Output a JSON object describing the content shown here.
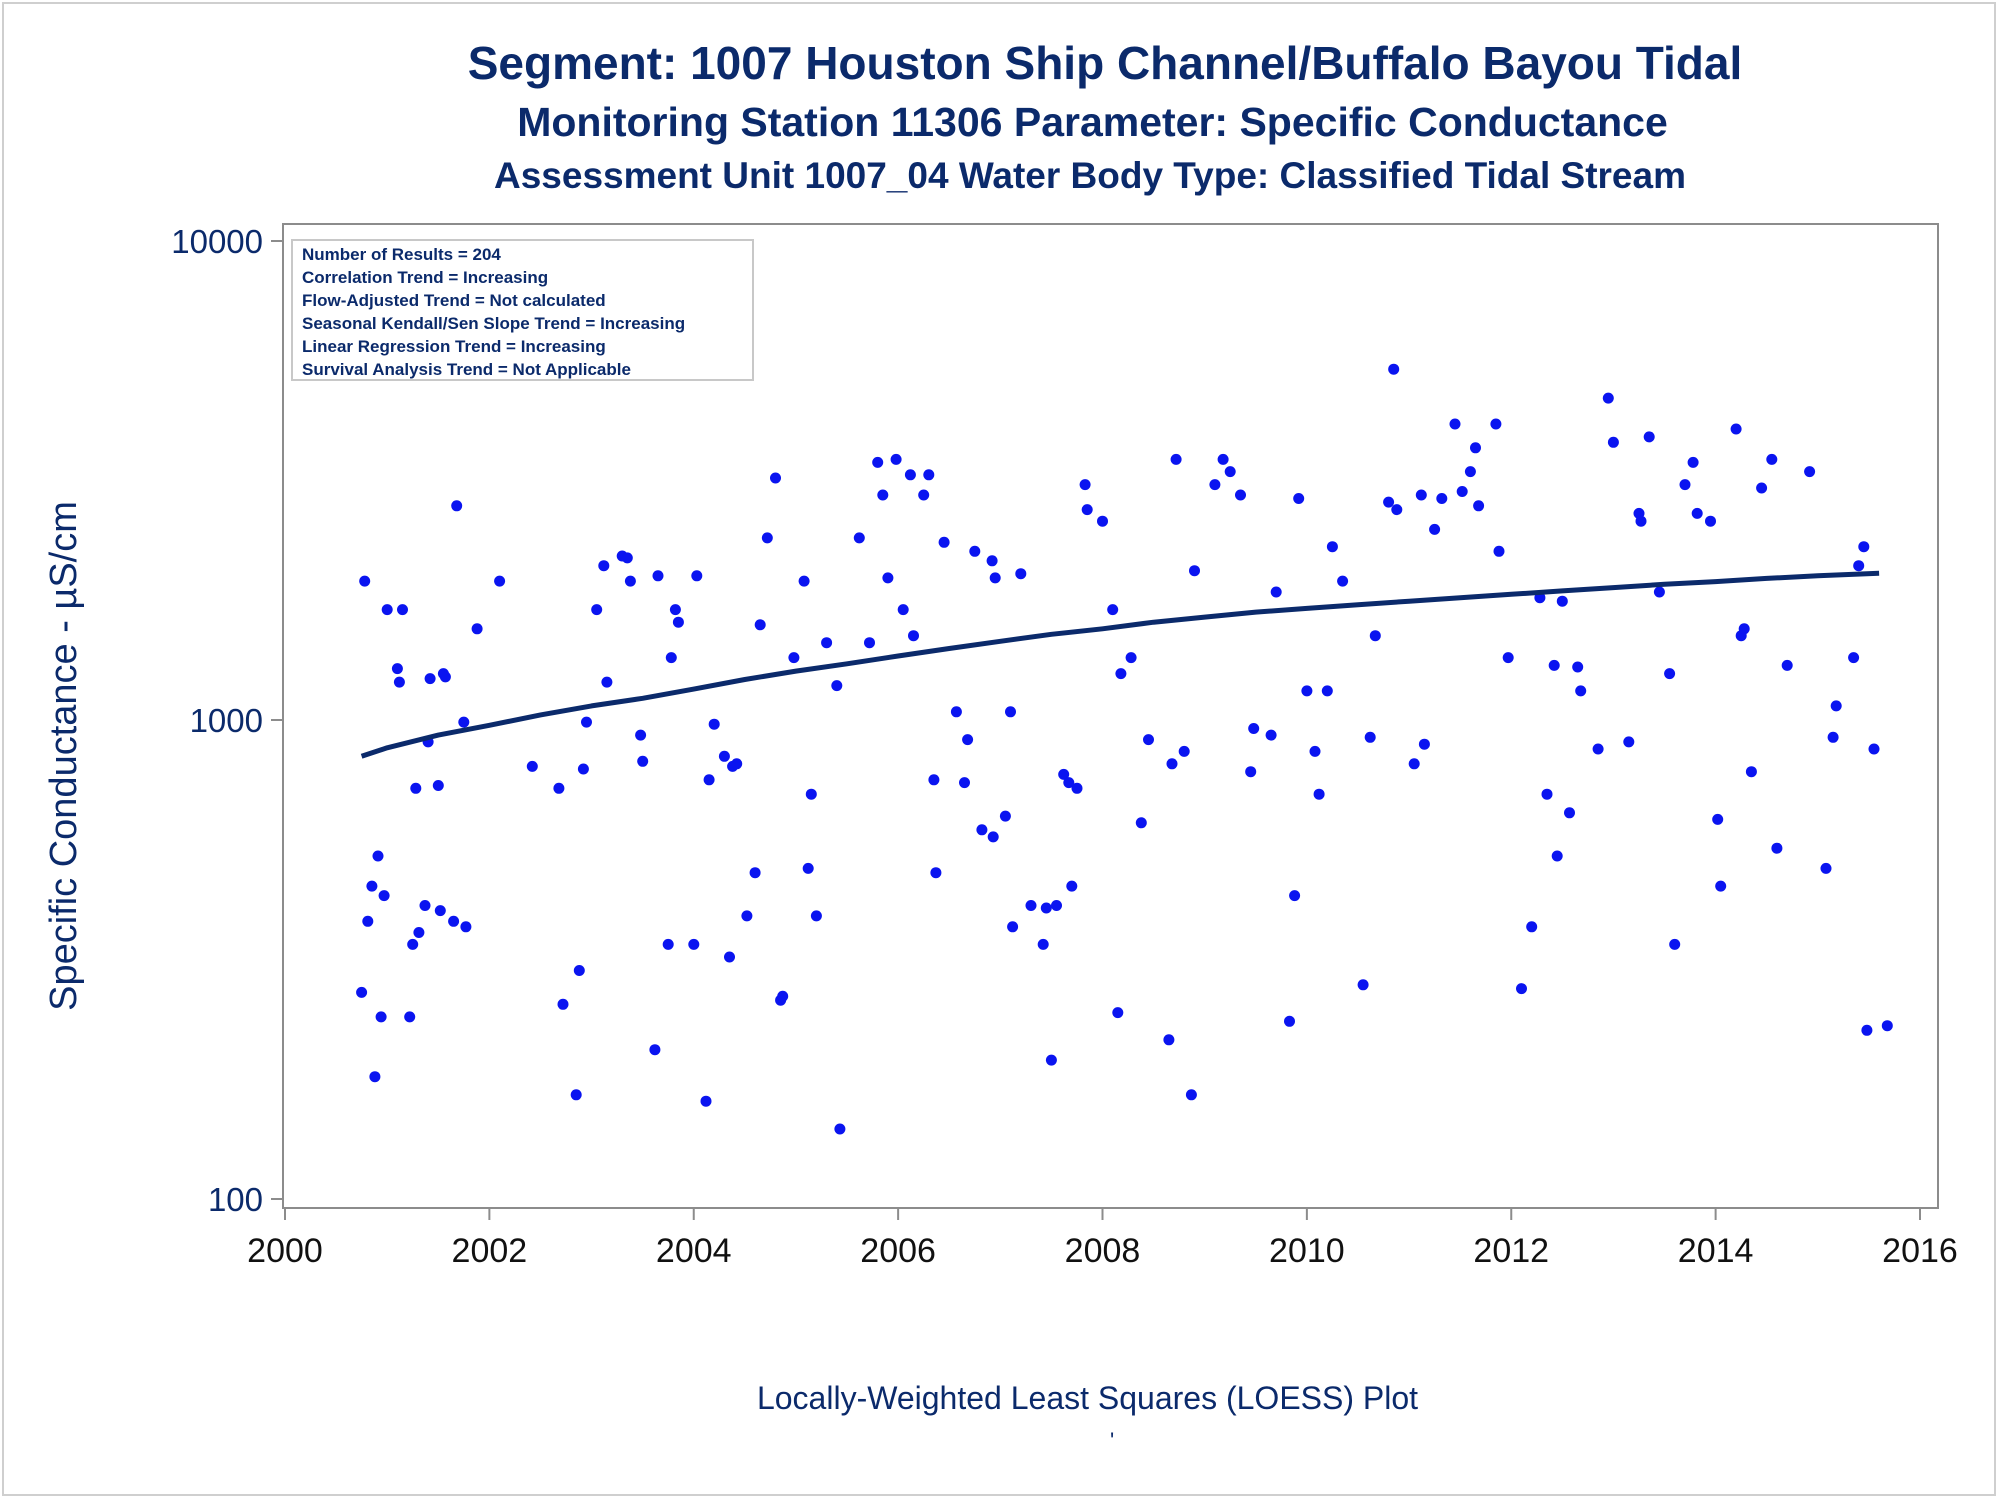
{
  "titles": {
    "line1": "Segment: 1007  Houston Ship Channel/Buffalo Bayou Tidal",
    "line2": "Monitoring Station 11306 Parameter: Specific Conductance",
    "line3": "Assessment Unit 1007_04   Water Body Type: Classified Tidal Stream"
  },
  "footnote": "Locally-Weighted Least Squares (LOESS) Plot",
  "footnote_mark": "'",
  "stats_box": [
    "Number of Results = 204",
    "Correlation Trend = Increasing",
    "Flow-Adjusted Trend = Not calculated",
    "Seasonal Kendall/Sen Slope Trend = Increasing",
    "Linear Regression Trend = Increasing",
    "Survival Analysis Trend = Not Applicable"
  ],
  "colors": {
    "text": "#0b2a6b",
    "points": "#0a14f0",
    "trend_line": "#0b2a6b",
    "axis": "#8c8c8c"
  },
  "chart_data": {
    "type": "scatter",
    "ylabel": "Specific Conductance -  µS/cm",
    "xlabel": "",
    "y_scale": "log",
    "xlim": [
      2000,
      2016
    ],
    "ylim": [
      100,
      10000
    ],
    "x_ticks": [
      "2000",
      "2002",
      "2004",
      "2006",
      "2008",
      "2010",
      "2012",
      "2014",
      "2016"
    ],
    "y_ticks": [
      "100",
      "1000",
      "10000"
    ],
    "legend": "none",
    "grid": false,
    "series": [
      {
        "points": [
          [
            2000.75,
            270
          ],
          [
            2000.78,
            1950
          ],
          [
            2000.81,
            380
          ],
          [
            2000.85,
            450
          ],
          [
            2000.88,
            180
          ],
          [
            2000.91,
            520
          ],
          [
            2000.94,
            240
          ],
          [
            2000.97,
            430
          ],
          [
            2001.0,
            1700
          ],
          [
            2001.1,
            1280
          ],
          [
            2001.12,
            1200
          ],
          [
            2001.15,
            1700
          ],
          [
            2001.22,
            240
          ],
          [
            2001.25,
            340
          ],
          [
            2001.28,
            720
          ],
          [
            2001.31,
            360
          ],
          [
            2001.37,
            410
          ],
          [
            2001.4,
            900
          ],
          [
            2001.42,
            1220
          ],
          [
            2001.5,
            730
          ],
          [
            2001.52,
            400
          ],
          [
            2001.55,
            1250
          ],
          [
            2001.57,
            1230
          ],
          [
            2001.65,
            380
          ],
          [
            2001.68,
            2800
          ],
          [
            2001.75,
            990
          ],
          [
            2001.77,
            370
          ],
          [
            2001.88,
            1550
          ],
          [
            2002.1,
            1950
          ],
          [
            2002.42,
            800
          ],
          [
            2002.68,
            720
          ],
          [
            2002.72,
            255
          ],
          [
            2002.85,
            165
          ],
          [
            2002.88,
            300
          ],
          [
            2002.92,
            790
          ],
          [
            2002.95,
            990
          ],
          [
            2003.05,
            1700
          ],
          [
            2003.12,
            2100
          ],
          [
            2003.15,
            1200
          ],
          [
            2003.3,
            2200
          ],
          [
            2003.35,
            2180
          ],
          [
            2003.38,
            1950
          ],
          [
            2003.48,
            930
          ],
          [
            2003.5,
            820
          ],
          [
            2003.62,
            205
          ],
          [
            2003.65,
            2000
          ],
          [
            2003.75,
            340
          ],
          [
            2003.78,
            1350
          ],
          [
            2003.82,
            1700
          ],
          [
            2003.85,
            1600
          ],
          [
            2004.0,
            340
          ],
          [
            2004.03,
            2000
          ],
          [
            2004.12,
            160
          ],
          [
            2004.15,
            750
          ],
          [
            2004.2,
            980
          ],
          [
            2004.3,
            840
          ],
          [
            2004.35,
            320
          ],
          [
            2004.38,
            800
          ],
          [
            2004.42,
            810
          ],
          [
            2004.52,
            390
          ],
          [
            2004.6,
            480
          ],
          [
            2004.65,
            1580
          ],
          [
            2004.72,
            2400
          ],
          [
            2004.8,
            3200
          ],
          [
            2004.85,
            260
          ],
          [
            2004.87,
            265
          ],
          [
            2004.98,
            1350
          ],
          [
            2005.08,
            1950
          ],
          [
            2005.12,
            490
          ],
          [
            2005.15,
            700
          ],
          [
            2005.2,
            390
          ],
          [
            2005.3,
            1450
          ],
          [
            2005.4,
            1180
          ],
          [
            2005.43,
            140
          ],
          [
            2005.62,
            2400
          ],
          [
            2005.72,
            1450
          ],
          [
            2005.8,
            3450
          ],
          [
            2005.85,
            2950
          ],
          [
            2005.9,
            1980
          ],
          [
            2005.98,
            3500
          ],
          [
            2006.05,
            1700
          ],
          [
            2006.12,
            3250
          ],
          [
            2006.15,
            1500
          ],
          [
            2006.25,
            2950
          ],
          [
            2006.3,
            3250
          ],
          [
            2006.35,
            750
          ],
          [
            2006.37,
            480
          ],
          [
            2006.45,
            2350
          ],
          [
            2006.57,
            1040
          ],
          [
            2006.65,
            740
          ],
          [
            2006.68,
            910
          ],
          [
            2006.75,
            2250
          ],
          [
            2006.82,
            590
          ],
          [
            2006.92,
            2150
          ],
          [
            2006.93,
            570
          ],
          [
            2006.95,
            1980
          ],
          [
            2007.05,
            630
          ],
          [
            2007.1,
            1040
          ],
          [
            2007.12,
            370
          ],
          [
            2007.2,
            2020
          ],
          [
            2007.3,
            410
          ],
          [
            2007.42,
            340
          ],
          [
            2007.45,
            405
          ],
          [
            2007.5,
            195
          ],
          [
            2007.55,
            410
          ],
          [
            2007.62,
            770
          ],
          [
            2007.67,
            740
          ],
          [
            2007.7,
            450
          ],
          [
            2007.75,
            720
          ],
          [
            2007.83,
            3100
          ],
          [
            2007.85,
            2750
          ],
          [
            2008.0,
            2600
          ],
          [
            2008.1,
            1700
          ],
          [
            2008.15,
            245
          ],
          [
            2008.18,
            1250
          ],
          [
            2008.28,
            1350
          ],
          [
            2008.38,
            610
          ],
          [
            2008.45,
            910
          ],
          [
            2008.65,
            215
          ],
          [
            2008.68,
            810
          ],
          [
            2008.72,
            3500
          ],
          [
            2008.8,
            860
          ],
          [
            2008.87,
            165
          ],
          [
            2008.9,
            2050
          ],
          [
            2009.1,
            3100
          ],
          [
            2009.18,
            3500
          ],
          [
            2009.25,
            3300
          ],
          [
            2009.35,
            2950
          ],
          [
            2009.45,
            780
          ],
          [
            2009.48,
            960
          ],
          [
            2009.65,
            930
          ],
          [
            2009.7,
            1850
          ],
          [
            2009.83,
            235
          ],
          [
            2009.88,
            430
          ],
          [
            2009.92,
            2900
          ],
          [
            2010.0,
            1150
          ],
          [
            2010.08,
            860
          ],
          [
            2010.12,
            700
          ],
          [
            2010.2,
            1150
          ],
          [
            2010.25,
            2300
          ],
          [
            2010.35,
            1950
          ],
          [
            2010.55,
            280
          ],
          [
            2010.62,
            920
          ],
          [
            2010.67,
            1500
          ],
          [
            2010.8,
            2850
          ],
          [
            2010.85,
            5400
          ],
          [
            2010.88,
            2750
          ],
          [
            2011.05,
            810
          ],
          [
            2011.12,
            2950
          ],
          [
            2011.15,
            890
          ],
          [
            2011.25,
            2500
          ],
          [
            2011.32,
            2900
          ],
          [
            2011.45,
            4150
          ],
          [
            2011.52,
            3000
          ],
          [
            2011.6,
            3300
          ],
          [
            2011.65,
            3700
          ],
          [
            2011.68,
            2800
          ],
          [
            2011.85,
            4150
          ],
          [
            2011.88,
            2250
          ],
          [
            2011.97,
            1350
          ],
          [
            2012.1,
            275
          ],
          [
            2012.2,
            370
          ],
          [
            2012.28,
            1800
          ],
          [
            2012.35,
            700
          ],
          [
            2012.42,
            1300
          ],
          [
            2012.45,
            520
          ],
          [
            2012.5,
            1770
          ],
          [
            2012.57,
            640
          ],
          [
            2012.65,
            1290
          ],
          [
            2012.68,
            1150
          ],
          [
            2012.85,
            870
          ],
          [
            2012.95,
            4700
          ],
          [
            2013.0,
            3800
          ],
          [
            2013.15,
            900
          ],
          [
            2013.25,
            2700
          ],
          [
            2013.27,
            2600
          ],
          [
            2013.35,
            3900
          ],
          [
            2013.45,
            1850
          ],
          [
            2013.55,
            1250
          ],
          [
            2013.6,
            340
          ],
          [
            2013.7,
            3100
          ],
          [
            2013.78,
            3450
          ],
          [
            2013.82,
            2700
          ],
          [
            2013.95,
            2600
          ],
          [
            2014.02,
            620
          ],
          [
            2014.05,
            450
          ],
          [
            2014.2,
            4050
          ],
          [
            2014.25,
            1500
          ],
          [
            2014.28,
            1550
          ],
          [
            2014.35,
            780
          ],
          [
            2014.45,
            3050
          ],
          [
            2014.55,
            3500
          ],
          [
            2014.6,
            540
          ],
          [
            2014.7,
            1300
          ],
          [
            2014.92,
            3300
          ],
          [
            2015.08,
            490
          ],
          [
            2015.15,
            920
          ],
          [
            2015.18,
            1070
          ],
          [
            2015.35,
            1350
          ],
          [
            2015.4,
            2100
          ],
          [
            2015.45,
            2300
          ],
          [
            2015.48,
            225
          ],
          [
            2015.55,
            870
          ],
          [
            2015.68,
            230
          ]
        ]
      },
      {
        "type": "loess",
        "points": [
          [
            2000.75,
            840
          ],
          [
            2001.0,
            875
          ],
          [
            2001.5,
            930
          ],
          [
            2002.0,
            975
          ],
          [
            2002.5,
            1025
          ],
          [
            2003.0,
            1070
          ],
          [
            2003.5,
            1110
          ],
          [
            2004.0,
            1160
          ],
          [
            2004.5,
            1215
          ],
          [
            2005.0,
            1265
          ],
          [
            2005.5,
            1310
          ],
          [
            2006.0,
            1360
          ],
          [
            2006.5,
            1410
          ],
          [
            2007.0,
            1460
          ],
          [
            2007.5,
            1510
          ],
          [
            2008.0,
            1550
          ],
          [
            2008.5,
            1600
          ],
          [
            2009.0,
            1640
          ],
          [
            2009.5,
            1680
          ],
          [
            2010.0,
            1710
          ],
          [
            2010.5,
            1740
          ],
          [
            2011.0,
            1770
          ],
          [
            2011.5,
            1800
          ],
          [
            2012.0,
            1830
          ],
          [
            2012.5,
            1860
          ],
          [
            2013.0,
            1890
          ],
          [
            2013.5,
            1920
          ],
          [
            2014.0,
            1945
          ],
          [
            2014.5,
            1975
          ],
          [
            2015.0,
            2000
          ],
          [
            2015.6,
            2025
          ]
        ]
      }
    ]
  }
}
